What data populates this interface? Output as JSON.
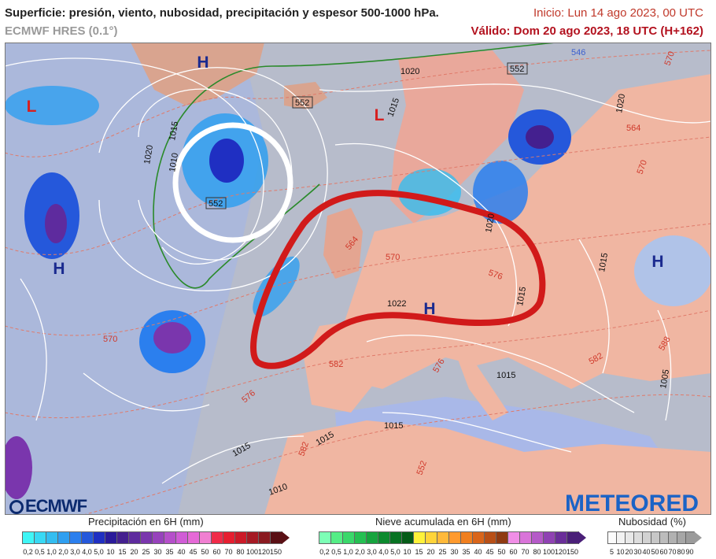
{
  "header": {
    "title": "Superficie: presión, viento, nubosidad, precipitación y espesor 500-1000 hPa.",
    "model": "ECMWF HRES (0.1°)",
    "init": "Inicio: Lun 14 ago 2023, 00 UTC",
    "valid": "Válido: Dom 20 ago 2023, 18 UTC (H+162)"
  },
  "map": {
    "pressure_labels": [
      {
        "text": "H",
        "kind": "high"
      },
      {
        "text": "L",
        "kind": "low"
      },
      {
        "text": "L",
        "kind": "low"
      },
      {
        "text": "H",
        "kind": "high"
      },
      {
        "text": "H",
        "kind": "high"
      },
      {
        "text": "H",
        "kind": "high"
      }
    ],
    "isobar_labels": [
      "1020",
      "1015",
      "1010",
      "1020",
      "1015",
      "1020",
      "1015",
      "1015",
      "1020",
      "1022",
      "1015",
      "1015",
      "1010",
      "1015",
      "1005",
      "1015"
    ],
    "thickness_labels": [
      "552",
      "552",
      "552",
      "546",
      "564",
      "564",
      "570",
      "570",
      "576",
      "576",
      "576",
      "582",
      "582",
      "552",
      "570",
      "588",
      "582",
      "570"
    ]
  },
  "logos": {
    "ecmwf": "ECMWF",
    "meteored": "METEORED"
  },
  "legends": {
    "precip": {
      "title": "Precipitación en 6H (mm)",
      "ticks": [
        "0,2",
        "0,5",
        "1,0",
        "2,0",
        "3,0",
        "4,0",
        "5,0",
        "10",
        "15",
        "20",
        "25",
        "30",
        "35",
        "40",
        "45",
        "50",
        "60",
        "70",
        "80",
        "100",
        "120",
        "150"
      ],
      "colors": [
        "#3ff6f6",
        "#38d9f4",
        "#33bdf0",
        "#2f9ff0",
        "#2b7fee",
        "#2558db",
        "#1f2fc2",
        "#2a1a9a",
        "#44208f",
        "#5e2b9e",
        "#7a36ad",
        "#9742bc",
        "#b54fca",
        "#d05cd6",
        "#e56ad7",
        "#f07fd1",
        "#f02a48",
        "#e61e30",
        "#cc1a28",
        "#a61a24",
        "#8a1a20",
        "#5a1015"
      ]
    },
    "snow": {
      "title": "Nieve acumulada en 6H (mm)",
      "ticks": [
        "0,2",
        "0,5",
        "1,0",
        "2,0",
        "3,0",
        "4,0",
        "5,0",
        "10",
        "15",
        "20",
        "25",
        "30",
        "35",
        "40",
        "45",
        "50",
        "60",
        "70",
        "80",
        "100",
        "120",
        "150"
      ],
      "colors": [
        "#7dffb6",
        "#55ee86",
        "#3ad86a",
        "#25c052",
        "#16a43e",
        "#0c8a2e",
        "#087222",
        "#055c18",
        "#fff23a",
        "#ffd43a",
        "#ffb93a",
        "#ff9a2e",
        "#f07f1f",
        "#d9651a",
        "#b84f16",
        "#8f3a12",
        "#f08ee6",
        "#d974d9",
        "#b55ac8",
        "#8f42b3",
        "#6a2e99",
        "#4a1f78"
      ]
    },
    "cloud": {
      "title": "Nubosidad (%)",
      "ticks": [
        "5",
        "10",
        "20",
        "30",
        "40",
        "50",
        "60",
        "70",
        "80",
        "90"
      ],
      "colors": [
        "#fbfbfb",
        "#f2f2f2",
        "#e8e8e8",
        "#dddddd",
        "#d2d2d2",
        "#c7c7c7",
        "#bcbcbc",
        "#b1b1b1",
        "#a6a6a6",
        "#9b9b9b"
      ]
    }
  }
}
